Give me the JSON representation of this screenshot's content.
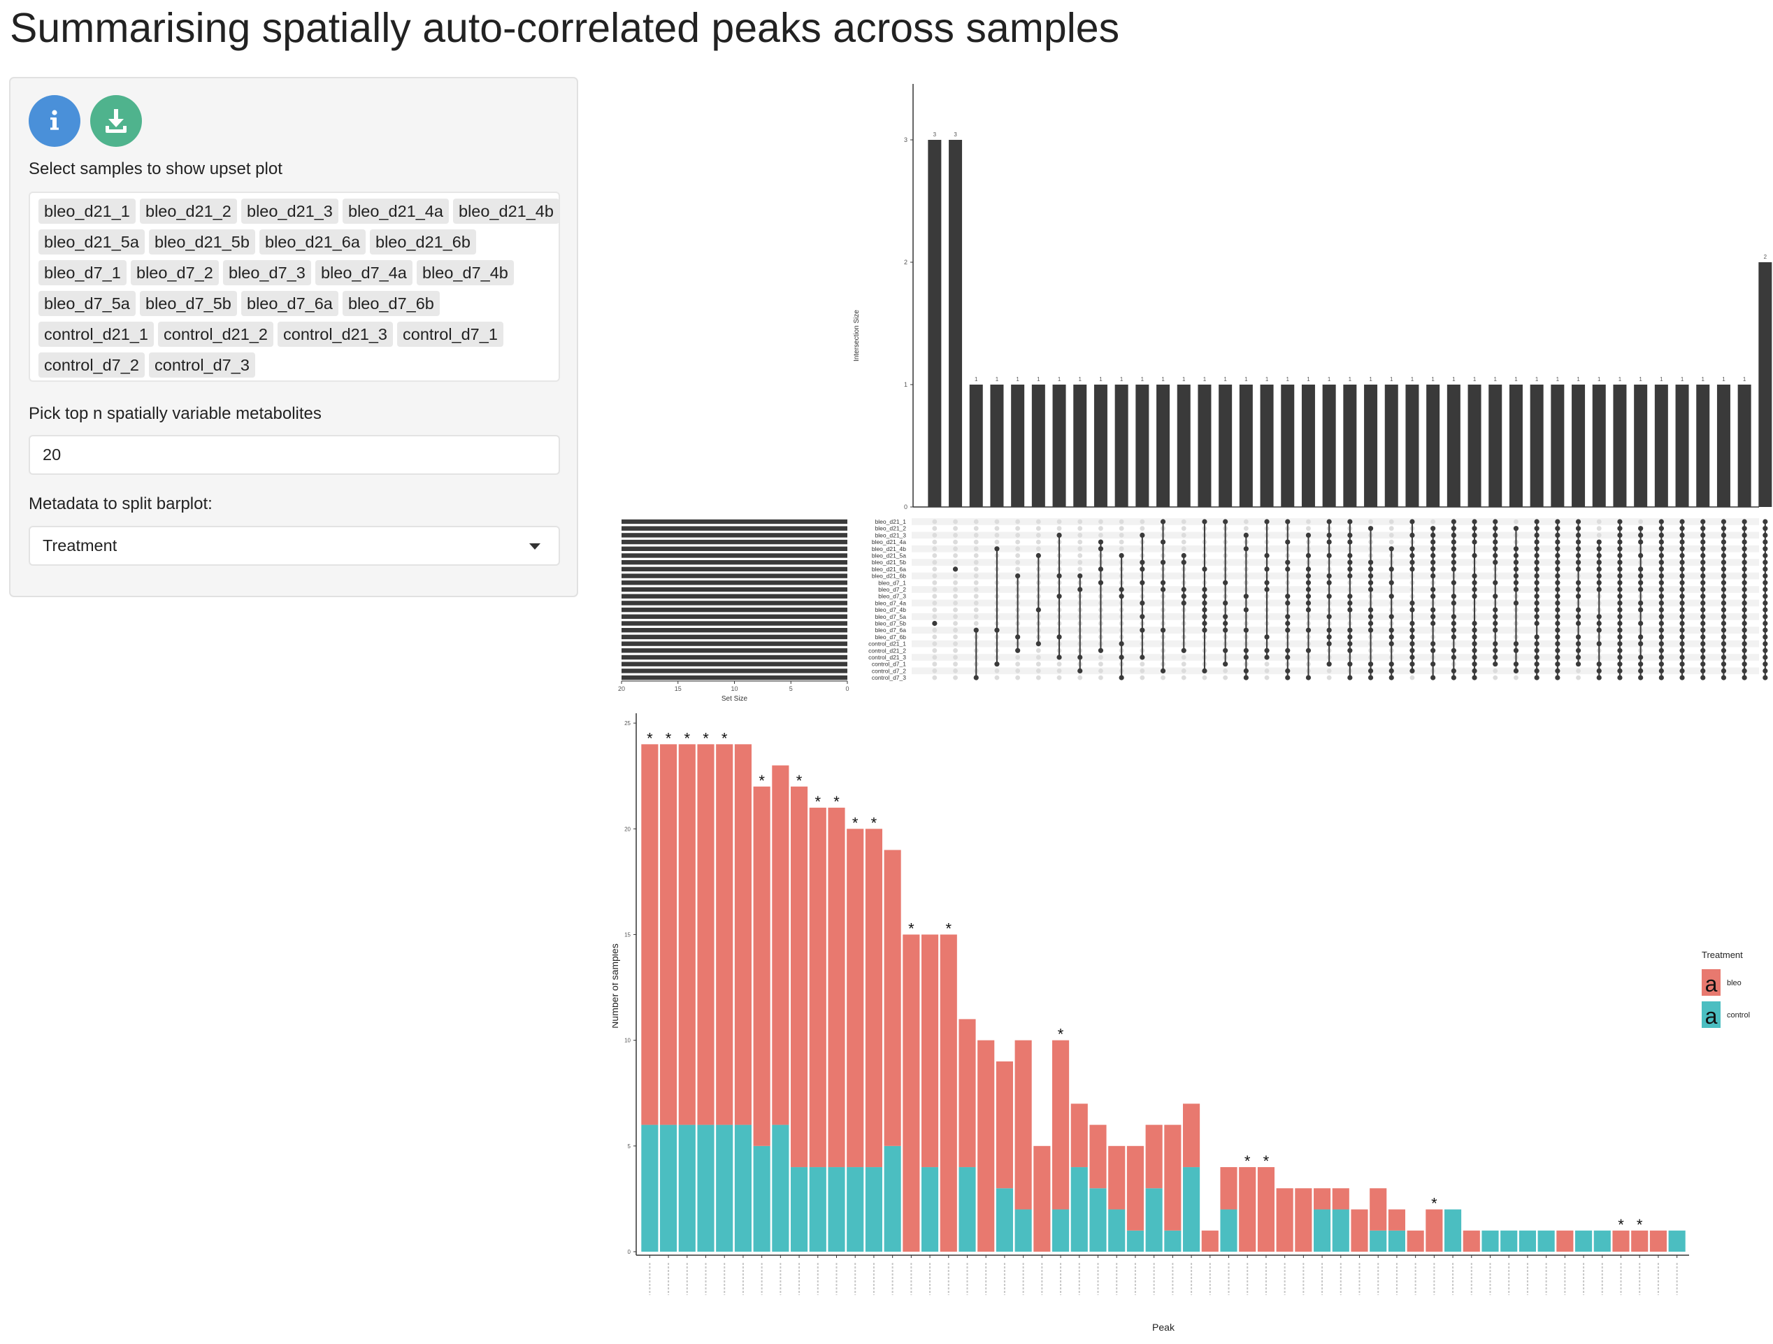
{
  "page_title": "Summarising spatially auto-correlated peaks across samples",
  "sidebar": {
    "info_button": {
      "icon": "info-icon"
    },
    "download_button": {
      "icon": "download-icon"
    },
    "colors": {
      "info": "#4a90d9",
      "download": "#4fb38d",
      "panel": "#f5f5f5"
    },
    "samples_label": "Select samples to show upset plot",
    "samples": [
      "bleo_d21_1",
      "bleo_d21_2",
      "bleo_d21_3",
      "bleo_d21_4a",
      "bleo_d21_4b",
      "bleo_d21_5a",
      "bleo_d21_5b",
      "bleo_d21_6a",
      "bleo_d21_6b",
      "bleo_d7_1",
      "bleo_d7_2",
      "bleo_d7_3",
      "bleo_d7_4a",
      "bleo_d7_4b",
      "bleo_d7_5a",
      "bleo_d7_5b",
      "bleo_d7_6a",
      "bleo_d7_6b",
      "control_d21_1",
      "control_d21_2",
      "control_d21_3",
      "control_d7_1",
      "control_d7_2",
      "control_d7_3"
    ],
    "topn_label": "Pick top n spatially variable metabolites",
    "topn_value": "20",
    "metadata_label": "Metadata to split barplot:",
    "metadata_value": "Treatment"
  },
  "chart_data": [
    {
      "type": "upset",
      "ylabel": "Intersection Size",
      "set_size_label": "Set Size",
      "yticks": [
        "0",
        "1",
        "2",
        "3"
      ],
      "set_size_ticks": [
        "20",
        "15",
        "10",
        "5",
        "0"
      ],
      "sets": [
        "bleo_d21_1",
        "bleo_d21_2",
        "bleo_d21_3",
        "bleo_d21_4a",
        "bleo_d21_4b",
        "bleo_d21_5a",
        "bleo_d21_5b",
        "bleo_d21_6a",
        "bleo_d21_6b",
        "bleo_d7_1",
        "bleo_d7_2",
        "bleo_d7_3",
        "bleo_d7_4a",
        "bleo_d7_4b",
        "bleo_d7_5a",
        "bleo_d7_5b",
        "bleo_d7_6a",
        "bleo_d7_6b",
        "control_d21_1",
        "control_d21_2",
        "control_d21_3",
        "control_d7_1",
        "control_d7_2",
        "control_d7_3"
      ],
      "set_sizes": [
        20,
        20,
        20,
        20,
        20,
        20,
        20,
        20,
        20,
        20,
        20,
        20,
        20,
        20,
        20,
        20,
        20,
        20,
        20,
        20,
        20,
        20,
        20,
        20
      ],
      "intersection_sizes": [
        3,
        3,
        1,
        1,
        1,
        1,
        1,
        1,
        1,
        1,
        1,
        1,
        1,
        1,
        1,
        1,
        1,
        1,
        1,
        1,
        1,
        1,
        1,
        1,
        1,
        1,
        1,
        1,
        1,
        1,
        1,
        1,
        1,
        1,
        1,
        1,
        1,
        1,
        1,
        1,
        2
      ],
      "ylim": [
        0,
        3
      ]
    },
    {
      "type": "bar",
      "stacked": true,
      "xlabel": "Peak",
      "ylabel": "Number of samples",
      "yticks": [
        "0",
        "5",
        "10",
        "15",
        "20",
        "25"
      ],
      "ylim": [
        0,
        25
      ],
      "legend": {
        "title": "Treatment",
        "position": "right",
        "glyph": "a"
      },
      "series": [
        {
          "name": "bleo",
          "color": "#e8796f",
          "values": [
            18,
            18,
            18,
            18,
            18,
            18,
            17,
            17,
            18,
            17,
            17,
            16,
            16,
            14,
            15,
            11,
            15,
            7,
            10,
            6,
            8,
            5,
            8,
            3,
            3,
            3,
            4,
            3,
            5,
            3,
            1,
            2,
            4,
            4,
            3,
            3,
            1,
            1,
            2,
            2,
            1,
            1,
            2,
            0,
            1,
            0,
            0,
            0,
            0,
            1,
            0,
            0,
            1,
            1,
            1,
            0
          ]
        },
        {
          "name": "control",
          "color": "#4bbec1",
          "values": [
            6,
            6,
            6,
            6,
            6,
            6,
            5,
            6,
            4,
            4,
            4,
            4,
            4,
            5,
            0,
            4,
            0,
            4,
            0,
            3,
            2,
            0,
            2,
            4,
            3,
            2,
            1,
            3,
            1,
            4,
            0,
            2,
            0,
            0,
            0,
            0,
            2,
            2,
            0,
            1,
            1,
            0,
            0,
            2,
            0,
            1,
            1,
            1,
            1,
            0,
            1,
            1,
            0,
            0,
            0,
            1
          ]
        }
      ],
      "significant": [
        1,
        1,
        1,
        1,
        1,
        0,
        1,
        0,
        1,
        1,
        1,
        1,
        1,
        0,
        1,
        0,
        1,
        0,
        0,
        0,
        0,
        0,
        1,
        0,
        0,
        0,
        0,
        0,
        0,
        0,
        0,
        0,
        1,
        1,
        0,
        0,
        0,
        0,
        0,
        0,
        0,
        0,
        1,
        0,
        0,
        0,
        0,
        0,
        0,
        0,
        0,
        0,
        1,
        1,
        0,
        0
      ],
      "significance_marker": "*"
    }
  ]
}
